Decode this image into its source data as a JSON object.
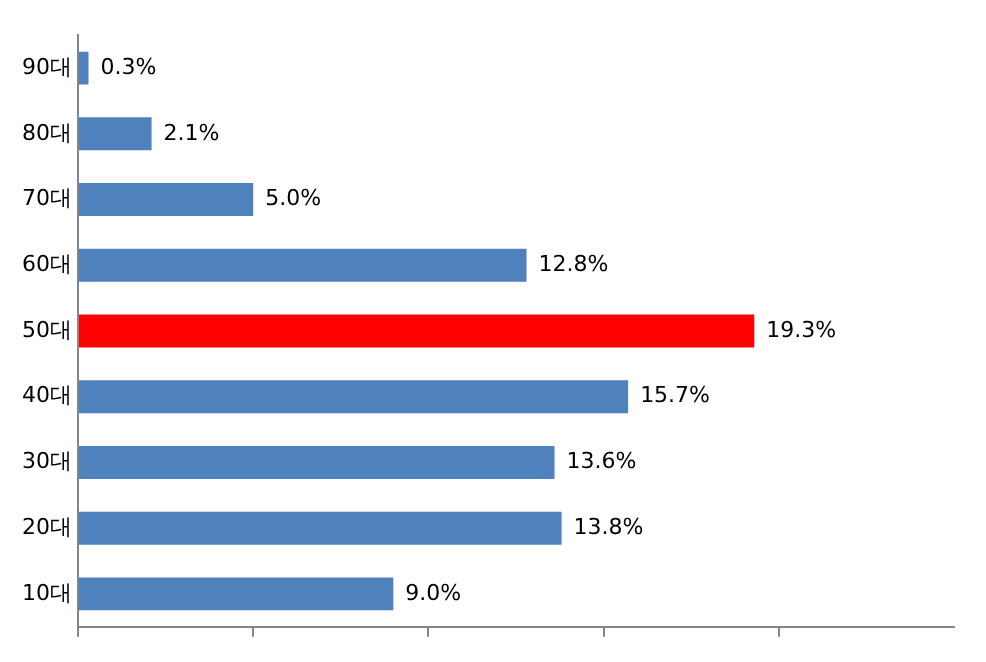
{
  "chart_data": {
    "type": "bar",
    "orientation": "horizontal",
    "categories": [
      "90대",
      "80대",
      "70대",
      "60대",
      "50대",
      "40대",
      "30대",
      "20대",
      "10대"
    ],
    "values": [
      0.3,
      2.1,
      5.0,
      12.8,
      19.3,
      15.7,
      13.6,
      13.8,
      9.0
    ],
    "colors": [
      "#4f81bd",
      "#4f81bd",
      "#4f81bd",
      "#4f81bd",
      "#ff0000",
      "#4f81bd",
      "#4f81bd",
      "#4f81bd",
      "#4f81bd"
    ],
    "value_labels": [
      "0.3%",
      "2.1%",
      "5.0%",
      "12.8%",
      "19.3%",
      "15.7%",
      "13.6%",
      "13.8%",
      "9.0%"
    ],
    "xlim": [
      0,
      25
    ],
    "xticks": [
      {
        "value": 0,
        "label": null
      },
      {
        "value": 5,
        "label": null
      },
      {
        "value": 10,
        "label": null
      },
      {
        "value": 15,
        "label": null
      },
      {
        "value": 20,
        "label": null
      }
    ],
    "tick_labels": "y",
    "grid": false,
    "legend": false
  }
}
